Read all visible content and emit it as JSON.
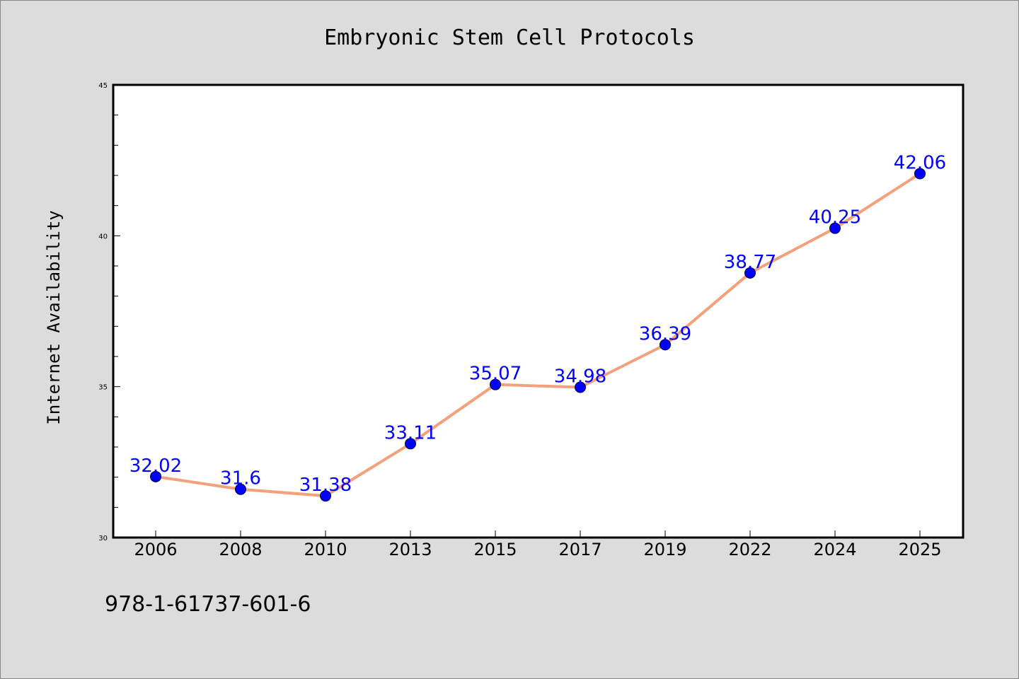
{
  "chart_data": {
    "type": "line",
    "title": "Embryonic Stem Cell Protocols",
    "xlabel": "",
    "ylabel": "Internet Availability",
    "categories": [
      "2006",
      "2008",
      "2010",
      "2013",
      "2015",
      "2017",
      "2019",
      "2022",
      "2024",
      "2025"
    ],
    "series": [
      {
        "values": [
          32.02,
          31.6,
          31.38,
          33.11,
          35.07,
          34.98,
          36.39,
          38.77,
          40.25,
          42.06
        ],
        "labels": [
          "32.02",
          "31.6",
          "31.38",
          "33.11",
          "35.07",
          "34.98",
          "36.39",
          "38.77",
          "40.25",
          "42.06"
        ],
        "line_color": "#f4a07a",
        "marker_color": "#0000ff"
      }
    ],
    "ylim": [
      30,
      45
    ],
    "yticks": [
      "30",
      "35",
      "40",
      "45"
    ],
    "grid": false,
    "legend": "none"
  },
  "footer": {
    "text": "978-1-61737-601-6"
  }
}
